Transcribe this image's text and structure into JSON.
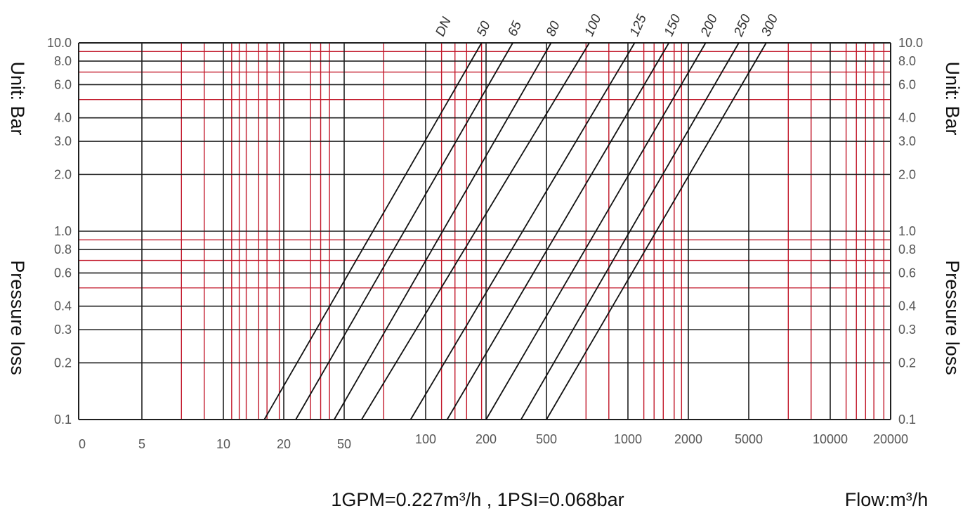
{
  "chart_data": {
    "type": "line",
    "title": "",
    "ylabel_top": "Unit: Bar",
    "ylabel_bottom": "Pressure loss",
    "xlabel": "Flow:m³/h",
    "note": "1GPM=0.227m³/h , 1PSI=0.068bar",
    "series_header": "DN",
    "x_ticks": [
      "0",
      "5",
      "10",
      "20",
      "50",
      "100",
      "200",
      "500",
      "1000",
      "2000",
      "5000",
      "10000",
      "20000"
    ],
    "x_label_rows": [
      "low",
      "low",
      "low",
      "low",
      "low",
      "high",
      "high",
      "high",
      "high",
      "high",
      "high",
      "high",
      "high"
    ],
    "y_ticks": [
      {
        "value": 0.1,
        "label": "0.1"
      },
      {
        "value": 0.2,
        "label": "0.2"
      },
      {
        "value": 0.3,
        "label": "0.3"
      },
      {
        "value": 0.4,
        "label": "0.4"
      },
      {
        "value": 0.6,
        "label": "0.6"
      },
      {
        "value": 0.8,
        "label": "0.8"
      },
      {
        "value": 1.0,
        "label": "1.0"
      },
      {
        "value": 2.0,
        "label": "2.0"
      },
      {
        "value": 3.0,
        "label": "3.0"
      },
      {
        "value": 4.0,
        "label": "4.0"
      },
      {
        "value": 6.0,
        "label": "6.0"
      },
      {
        "value": 8.0,
        "label": "8.0"
      },
      {
        "value": 10.0,
        "label": "10.0"
      }
    ],
    "ylim": [
      0.1,
      10.0
    ],
    "y_scale": "log",
    "x_scale": "log (custom ticks)",
    "red_grid_y": [
      0.5,
      0.7,
      0.9,
      5.0,
      7.0,
      9.0
    ],
    "red_grid_x": [
      7,
      8.5,
      11,
      12,
      13,
      15,
      16.5,
      19,
      30,
      35,
      40,
      70,
      120,
      140,
      160,
      190,
      700,
      850,
      1200,
      1350,
      1500,
      1700,
      1850,
      7000,
      8500,
      12000,
      13500,
      15000,
      16500,
      18500
    ],
    "series": [
      {
        "name": "50",
        "points": [
          [
            16,
            0.1
          ],
          [
            190,
            10.0
          ]
        ]
      },
      {
        "name": "65",
        "points": [
          [
            24,
            0.1
          ],
          [
            300,
            10.0
          ]
        ]
      },
      {
        "name": "80",
        "points": [
          [
            43,
            0.1
          ],
          [
            520,
            10.0
          ]
        ]
      },
      {
        "name": "100",
        "points": [
          [
            58,
            0.1
          ],
          [
            720,
            10.0
          ]
        ]
      },
      {
        "name": "125",
        "points": [
          [
            88,
            0.1
          ],
          [
            1080,
            10.0
          ]
        ]
      },
      {
        "name": "150",
        "points": [
          [
            128,
            0.1
          ],
          [
            1600,
            10.0
          ]
        ]
      },
      {
        "name": "200",
        "points": [
          [
            200,
            0.1
          ],
          [
            2600,
            10.0
          ]
        ]
      },
      {
        "name": "250",
        "points": [
          [
            340,
            0.1
          ],
          [
            4300,
            10.0
          ]
        ]
      },
      {
        "name": "300",
        "points": [
          [
            500,
            0.1
          ],
          [
            5800,
            10.0
          ]
        ]
      }
    ],
    "colors": {
      "grid_black": "#1f1f1f",
      "grid_red": "#c2182a",
      "series": "#111111"
    }
  }
}
